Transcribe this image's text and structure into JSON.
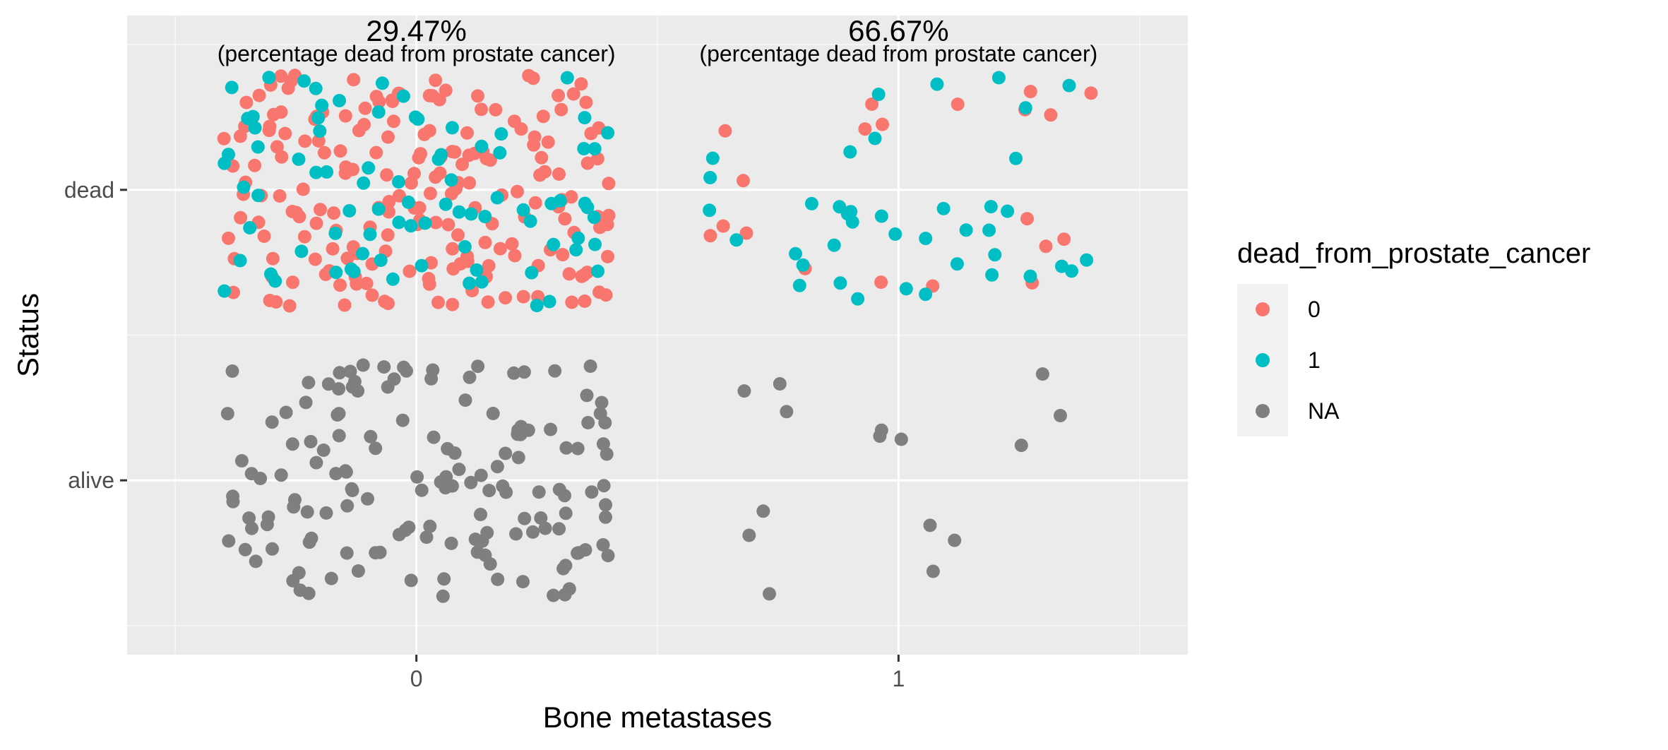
{
  "chart_data": {
    "type": "scatter",
    "title": "",
    "xlabel": "Bone metastases",
    "ylabel": "Status",
    "x_categories": [
      "0",
      "1"
    ],
    "y_categories": [
      "alive",
      "dead"
    ],
    "xlim": [
      -0.6,
      1.6
    ],
    "ylim": [
      0.4,
      2.6
    ],
    "grid": true,
    "jitter": 0.4,
    "legend": {
      "title": "dead_from_prostate_cancer",
      "position": "right",
      "entries": [
        {
          "label": "0",
          "color": "#F8766D"
        },
        {
          "label": "1",
          "color": "#00BFC4"
        },
        {
          "label": "NA",
          "color": "#7F7F7F"
        }
      ]
    },
    "annotations": [
      {
        "x": 0,
        "main": "29.47%",
        "sub": "(percentage dead from prostate cancer)"
      },
      {
        "x": 1,
        "main": "66.67%",
        "sub": "(percentage dead from prostate cancer)"
      }
    ],
    "series": [
      {
        "name": "0",
        "color": "#F8766D",
        "groups": [
          {
            "x": 0,
            "y": "dead",
            "count": 201
          },
          {
            "x": 1,
            "y": "dead",
            "count": 20
          }
        ]
      },
      {
        "name": "1",
        "color": "#00BFC4",
        "groups": [
          {
            "x": 0,
            "y": "dead",
            "count": 84
          },
          {
            "x": 1,
            "y": "dead",
            "count": 40
          }
        ]
      },
      {
        "name": "NA",
        "color": "#7F7F7F",
        "groups": [
          {
            "x": 0,
            "y": "alive",
            "count": 150
          },
          {
            "x": 1,
            "y": "alive",
            "count": 15
          }
        ]
      }
    ]
  }
}
